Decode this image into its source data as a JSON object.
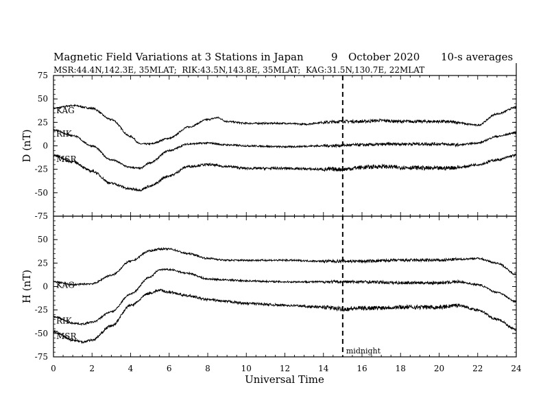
{
  "header": {
    "title_left": "Magnetic Field Variations at 3 Stations in Japan",
    "date_day": "9",
    "date_month_year": "October 2020",
    "averaging": "10-s averages",
    "subtitle": "MSR:44.4N,142.3E, 35MLAT;  RIK:43.5N,143.8E, 35MLAT;  KAG:31.5N,130.7E, 22MLAT"
  },
  "chart_data": {
    "type": "line",
    "xlabel": "Universal Time",
    "xlim": [
      0,
      24
    ],
    "xticks": [
      "0",
      "2",
      "4",
      "6",
      "8",
      "10",
      "12",
      "14",
      "16",
      "18",
      "20",
      "22",
      "24"
    ],
    "grid": false,
    "annotation": {
      "label": "midnight",
      "x": 15
    },
    "panels": [
      {
        "ylabel": "D (nT)",
        "ylim": [
          -75,
          75
        ],
        "yticks": [
          "75",
          "50",
          "25",
          "0",
          "-25",
          "-50",
          "-75"
        ],
        "series": [
          {
            "name": "KAG",
            "x": [
              0,
              1,
              2,
              3,
              4,
              4.5,
              5,
              6,
              7,
              8,
              8.5,
              9,
              10,
              11,
              12,
              13,
              14,
              15,
              16,
              17,
              18,
              19,
              20,
              21,
              21.5,
              22,
              23,
              24
            ],
            "y": [
              40,
              43,
              40,
              28,
              10,
              2,
              2,
              8,
              20,
              28,
              30,
              26,
              24,
              24,
              24,
              23,
              25,
              26,
              26,
              27,
              26,
              26,
              26,
              25,
              23,
              22,
              34,
              41
            ]
          },
          {
            "name": "RIK",
            "x": [
              0,
              1,
              2,
              3,
              4,
              4.5,
              5,
              6,
              7,
              8,
              9,
              10,
              12,
              14,
              16,
              18,
              20,
              21,
              22,
              23,
              24
            ],
            "y": [
              17,
              11,
              0,
              -15,
              -23,
              -24,
              -18,
              -5,
              2,
              3,
              1,
              0,
              -1,
              0,
              1,
              2,
              2,
              1,
              3,
              10,
              14
            ]
          },
          {
            "name": "MSR",
            "x": [
              0,
              1,
              2,
              3,
              4,
              4.5,
              5,
              6,
              7,
              8,
              9,
              10,
              12,
              14,
              15,
              16,
              17,
              18,
              20,
              21,
              22,
              23,
              24
            ],
            "y": [
              -10,
              -17,
              -27,
              -40,
              -46,
              -47,
              -43,
              -32,
              -22,
              -20,
              -22,
              -24,
              -24,
              -25,
              -25,
              -23,
              -22,
              -23,
              -24,
              -23,
              -20,
              -15,
              -10
            ]
          }
        ]
      },
      {
        "ylabel": "H (nT)",
        "ylim": [
          -75,
          75
        ],
        "yticks": [
          "75",
          "50",
          "25",
          "0",
          "-25",
          "-50",
          "-75"
        ],
        "series": [
          {
            "name": "KAG",
            "x": [
              0,
              1,
              2,
              3,
              4,
              5,
              5.5,
              6,
              7,
              8,
              9,
              10,
              12,
              14,
              16,
              18,
              20,
              21,
              22,
              23,
              24
            ],
            "y": [
              5,
              2,
              3,
              12,
              27,
              38,
              40,
              40,
              35,
              30,
              28,
              28,
              28,
              27,
              27,
              28,
              28,
              29,
              30,
              25,
              13
            ]
          },
          {
            "name": "RIK",
            "x": [
              0,
              1,
              1.5,
              2,
              3,
              4,
              5,
              5.5,
              6,
              7,
              8,
              9,
              10,
              12,
              14,
              16,
              18,
              20,
              21,
              22,
              23,
              24
            ],
            "y": [
              -32,
              -39,
              -40,
              -38,
              -27,
              -8,
              10,
              18,
              18,
              14,
              8,
              7,
              6,
              5,
              5,
              5,
              4,
              4,
              5,
              2,
              -6,
              -16
            ]
          },
          {
            "name": "MSR",
            "x": [
              0,
              1,
              1.5,
              2,
              3,
              4,
              5,
              5.5,
              6,
              7,
              8,
              9,
              10,
              12,
              14,
              15,
              16,
              18,
              20,
              21,
              22,
              23,
              24
            ],
            "y": [
              -48,
              -57,
              -59,
              -57,
              -42,
              -20,
              -7,
              -4,
              -6,
              -10,
              -14,
              -16,
              -18,
              -20,
              -22,
              -24,
              -23,
              -22,
              -22,
              -20,
              -25,
              -35,
              -46
            ]
          }
        ]
      }
    ]
  }
}
